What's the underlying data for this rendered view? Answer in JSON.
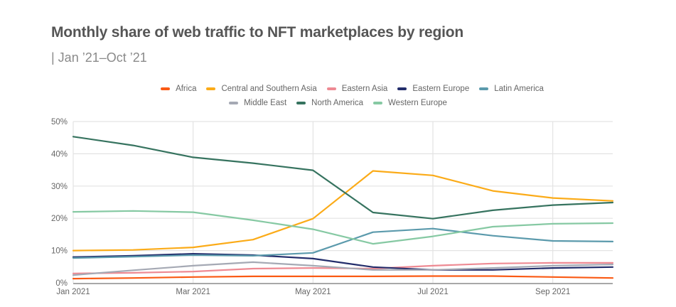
{
  "chart_data": {
    "type": "line",
    "title": "Monthly share of web traffic to NFT marketplaces by region",
    "subtitle": "| Jan ’21–Oct ’21",
    "xlabel": "",
    "ylabel": "",
    "x": [
      "Jan 2021",
      "Feb 2021",
      "Mar 2021",
      "Apr 2021",
      "May 2021",
      "Jun 2021",
      "Jul 2021",
      "Aug 2021",
      "Sep 2021",
      "Oct 2021"
    ],
    "x_tick_labels": [
      "Jan 2021",
      "Mar 2021",
      "May 2021",
      "Jul 2021",
      "Sep 2021"
    ],
    "x_tick_indices": [
      0,
      2,
      4,
      6,
      8
    ],
    "y_tick_labels": [
      "0%",
      "10%",
      "20%",
      "30%",
      "40%",
      "50%"
    ],
    "y_ticks": [
      0,
      10,
      20,
      30,
      40,
      50
    ],
    "ylim": [
      0,
      50
    ],
    "grid": true,
    "legend_position": "top-center",
    "series": [
      {
        "name": "Africa",
        "color": "#fa5a14",
        "values": [
          1.3,
          1.5,
          1.8,
          2.0,
          2.0,
          2.0,
          2.1,
          2.1,
          1.8,
          1.5
        ]
      },
      {
        "name": "Central and Southern Asia",
        "color": "#fbab18",
        "values": [
          10.0,
          10.2,
          11.0,
          13.4,
          19.9,
          34.7,
          33.3,
          28.5,
          26.3,
          25.4
        ]
      },
      {
        "name": "Eastern Asia",
        "color": "#ee8a93",
        "values": [
          2.9,
          3.1,
          3.5,
          4.4,
          4.6,
          4.4,
          5.3,
          6.0,
          6.2,
          6.2
        ]
      },
      {
        "name": "Eastern Europe",
        "color": "#232d6b",
        "values": [
          8.0,
          8.4,
          9.0,
          8.6,
          7.5,
          4.9,
          4.0,
          4.0,
          4.6,
          4.9
        ]
      },
      {
        "name": "Latin America",
        "color": "#5b9aac",
        "values": [
          7.7,
          8.1,
          8.6,
          8.4,
          9.3,
          15.7,
          16.8,
          14.6,
          13.0,
          12.8
        ]
      },
      {
        "name": "Middle East",
        "color": "#a5a9b4",
        "values": [
          2.4,
          3.9,
          5.3,
          6.4,
          5.3,
          4.0,
          4.0,
          4.6,
          5.3,
          5.7
        ]
      },
      {
        "name": "North America",
        "color": "#36735f",
        "values": [
          45.3,
          42.6,
          38.9,
          37.1,
          34.9,
          21.8,
          19.9,
          22.5,
          24.1,
          24.9
        ]
      },
      {
        "name": "Western Europe",
        "color": "#86c9a3",
        "values": [
          22.0,
          22.3,
          21.9,
          19.4,
          16.6,
          12.1,
          14.4,
          17.4,
          18.3,
          18.5
        ]
      }
    ]
  },
  "legend_rows": [
    [
      0,
      1,
      2,
      3,
      4
    ],
    [
      5,
      6,
      7
    ]
  ]
}
